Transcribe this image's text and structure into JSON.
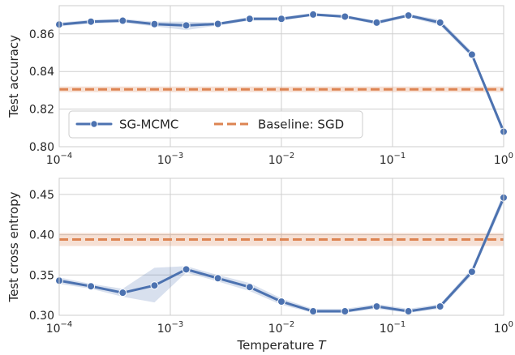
{
  "chart_data": [
    {
      "type": "line",
      "ylabel": "Test accuracy",
      "xlabel": "",
      "xscale": "log",
      "xlim": [
        0.0001,
        1
      ],
      "ylim": [
        0.8,
        0.875
      ],
      "yticks": [
        "0.80",
        "0.82",
        "0.84",
        "0.86"
      ],
      "ytick_values": [
        0.8,
        0.82,
        0.84,
        0.86
      ],
      "grid": true,
      "legend": {
        "placement": "lower-left",
        "entries": [
          "SG-MCMC",
          "Baseline: SGD"
        ]
      },
      "series": [
        {
          "name": "SG-MCMC",
          "color": "#4c72b0",
          "marker": "circle",
          "x": [
            0.0001,
            0.000193,
            0.000373,
            0.00072,
            0.00139,
            0.00268,
            0.00518,
            0.01,
            0.0193,
            0.0373,
            0.072,
            0.139,
            0.268,
            0.518,
            1
          ],
          "values": [
            0.865,
            0.8665,
            0.867,
            0.8652,
            0.8645,
            0.8653,
            0.868,
            0.868,
            0.8703,
            0.8692,
            0.866,
            0.8698,
            0.866,
            0.849,
            0.808
          ],
          "lower": [
            0.864,
            0.8655,
            0.866,
            0.864,
            0.862,
            0.8645,
            0.867,
            0.867,
            0.8695,
            0.8685,
            0.865,
            0.869,
            0.8645,
            0.8475,
            0.806
          ],
          "upper": [
            0.866,
            0.8675,
            0.868,
            0.8665,
            0.8665,
            0.866,
            0.869,
            0.869,
            0.871,
            0.87,
            0.867,
            0.8706,
            0.8675,
            0.8505,
            0.81
          ]
        },
        {
          "name": "Baseline: SGD",
          "color": "#dd8452",
          "style": "dashed",
          "value": 0.8305,
          "lower": 0.829,
          "upper": 0.832
        }
      ]
    },
    {
      "type": "line",
      "ylabel": "Test cross entropy",
      "xlabel": "Temperature T",
      "xscale": "log",
      "xlim": [
        0.0001,
        1
      ],
      "ylim": [
        0.3,
        0.47
      ],
      "yticks": [
        "0.30",
        "0.35",
        "0.40",
        "0.45"
      ],
      "ytick_values": [
        0.3,
        0.35,
        0.4,
        0.45
      ],
      "grid": true,
      "series": [
        {
          "name": "SG-MCMC",
          "color": "#4c72b0",
          "marker": "circle",
          "x": [
            0.0001,
            0.000193,
            0.000373,
            0.00072,
            0.00139,
            0.00268,
            0.00518,
            0.01,
            0.0193,
            0.0373,
            0.072,
            0.139,
            0.268,
            0.518,
            1
          ],
          "values": [
            0.343,
            0.336,
            0.328,
            0.337,
            0.357,
            0.346,
            0.335,
            0.317,
            0.305,
            0.305,
            0.311,
            0.305,
            0.311,
            0.354,
            0.446
          ],
          "lower": [
            0.339,
            0.333,
            0.323,
            0.316,
            0.353,
            0.342,
            0.33,
            0.313,
            0.303,
            0.303,
            0.308,
            0.303,
            0.308,
            0.35,
            0.44
          ],
          "upper": [
            0.347,
            0.339,
            0.333,
            0.359,
            0.361,
            0.35,
            0.34,
            0.321,
            0.308,
            0.308,
            0.314,
            0.308,
            0.314,
            0.358,
            0.452
          ]
        },
        {
          "name": "Baseline: SGD",
          "color": "#dd8452",
          "style": "dashed",
          "value": 0.394,
          "lower": 0.386,
          "upper": 0.402
        }
      ]
    }
  ],
  "xticks": {
    "base": "10",
    "exponents": [
      "−4",
      "−3",
      "−2",
      "−1",
      ""
    ],
    "last_label": "10",
    "last_exponent": "0",
    "values": [
      0.0001,
      0.001,
      0.01,
      0.1,
      1
    ]
  },
  "xlabel_text": "Temperature ",
  "xlabel_var": "T",
  "legend_labels": {
    "sgmcmc": "SG-MCMC",
    "sgd": "Baseline: SGD"
  },
  "band_colors": {
    "blue": "#4c72b0",
    "orange": "#dd8452"
  }
}
